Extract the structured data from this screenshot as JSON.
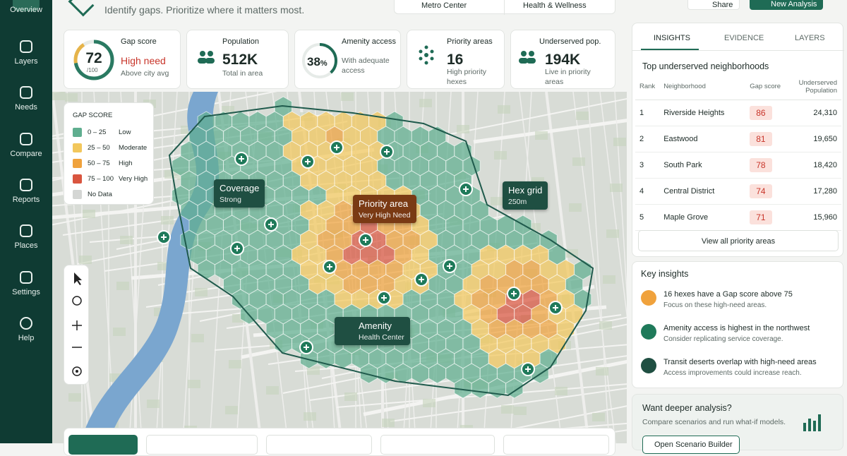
{
  "sidebar": {
    "nav": [
      "Overview",
      "Layers",
      "Needs",
      "Compare",
      "Reports",
      "Places",
      "Settings",
      "Help"
    ]
  },
  "header": {
    "subtitle": "Identify gaps. Prioritize where it matters most.",
    "filters": [
      "Metro Center",
      "Health & Wellness"
    ],
    "buttons": [
      "Share",
      "New Analysis"
    ]
  },
  "kpis": {
    "gap": {
      "label": "Gap score",
      "value": "72",
      "scale": "/100",
      "status": "High need",
      "note": "Above city avg"
    },
    "population": {
      "label": "Population",
      "value": "512K",
      "note": "Total in area"
    },
    "amenity": {
      "label": "Amenity access",
      "value": "38",
      "unit": "%",
      "note": "With adequate access"
    },
    "priority": {
      "label": "Priority areas",
      "value": "16",
      "note": "High priority hexes"
    },
    "underserved": {
      "label": "Underserved pop.",
      "value": "194K",
      "note": "Live in priority areas"
    }
  },
  "legend": {
    "title": "GAP SCORE",
    "items": [
      {
        "range": "0 – 25",
        "label": "Low",
        "color": "#5fae8f"
      },
      {
        "range": "25 – 50",
        "label": "Moderate",
        "color": "#f2c75c"
      },
      {
        "range": "50 – 75",
        "label": "High",
        "color": "#f0a23c"
      },
      {
        "range": "75 – 100",
        "label": "Very High",
        "color": "#d9553f"
      }
    ],
    "nodata": "No Data"
  },
  "callouts": [
    {
      "title": "Coverage",
      "sub": "Strong"
    },
    {
      "title": "Priority area",
      "sub": "Very High Need"
    },
    {
      "title": "Hex grid",
      "sub": "250m"
    },
    {
      "title": "Amenity",
      "sub": "Health Center"
    }
  ],
  "panel": {
    "tabs": [
      "INSIGHTS",
      "EVIDENCE",
      "LAYERS"
    ],
    "table": {
      "title": "Top underserved neighborhoods",
      "columns": [
        "Rank",
        "Neighborhood",
        "Gap score",
        "Underserved Population"
      ],
      "rows": [
        [
          "1",
          "Riverside Heights",
          "86",
          "24,310"
        ],
        [
          "2",
          "Eastwood",
          "81",
          "19,650"
        ],
        [
          "3",
          "South Park",
          "78",
          "18,420"
        ],
        [
          "4",
          "Central District",
          "74",
          "17,280"
        ],
        [
          "5",
          "Maple Grove",
          "71",
          "15,960"
        ]
      ]
    },
    "link": "View all priority areas",
    "insights": {
      "title": "Key insights",
      "items": [
        {
          "title": "16 hexes have a Gap score above 75",
          "text": "Focus on these high-need areas."
        },
        {
          "title": "Amenity access is highest in the northwest",
          "text": "Consider replicating service coverage."
        },
        {
          "title": "Transit deserts overlap with high-need areas",
          "text": "Access improvements could increase reach."
        }
      ]
    },
    "cta": {
      "title": "Want deeper analysis?",
      "text": "Compare scenarios and run what-if models.",
      "button": "Open Scenario Builder"
    }
  }
}
